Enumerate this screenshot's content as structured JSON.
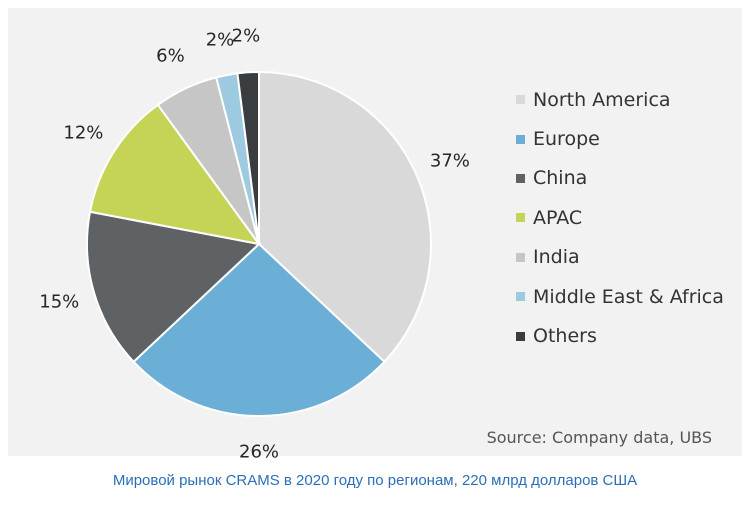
{
  "chart_data": {
    "type": "pie",
    "categories": [
      "North America",
      "Europe",
      "China",
      "APAC",
      "India",
      "Middle East & Africa",
      "Others"
    ],
    "values": [
      37,
      26,
      15,
      12,
      6,
      2,
      2
    ],
    "labels": [
      "37%",
      "26%",
      "15%",
      "12%",
      "6%",
      "2%",
      "2%"
    ],
    "colors": [
      "#d9d9d9",
      "#6baed6",
      "#5f6264",
      "#c5d356",
      "#c6c6c6",
      "#9ecae1",
      "#3a3d40"
    ],
    "legend_position": "right",
    "source": "Source: Company data, UBS"
  },
  "caption": "Мировой рынок CRAMS в 2020 году по регионам, 220 млрд долларов США"
}
